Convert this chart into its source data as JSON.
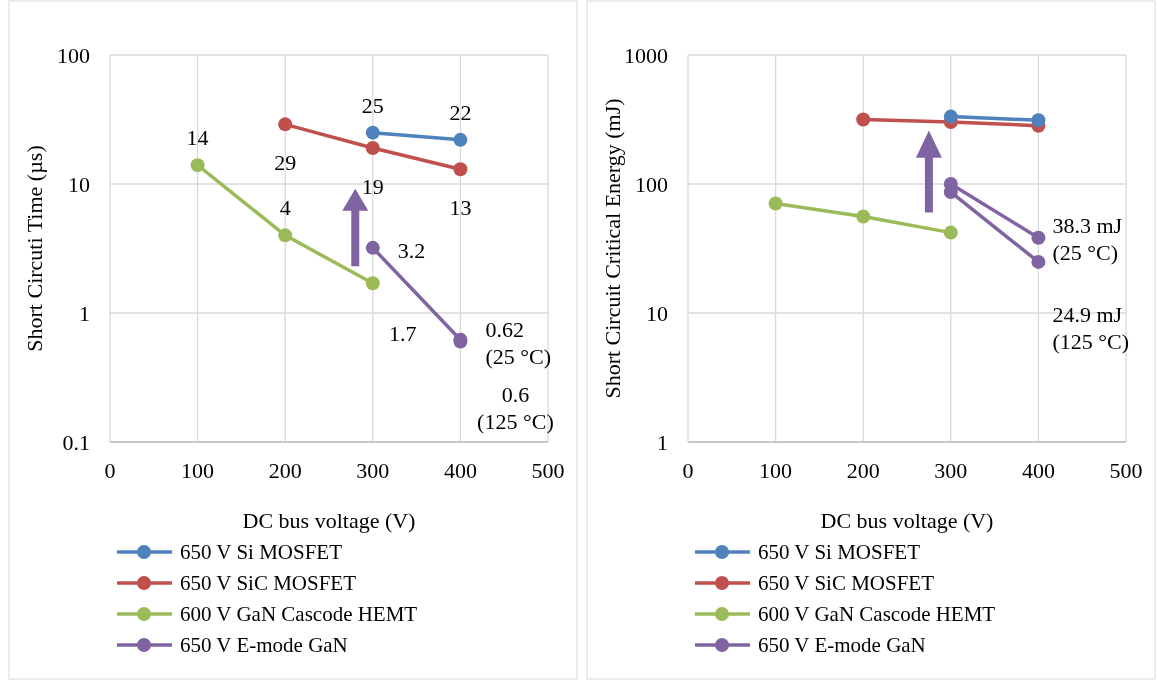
{
  "chart_data": [
    {
      "type": "line",
      "xlabel": "DC bus voltage (V)",
      "ylabel": "Short Circuti Time (µs)",
      "log": "y",
      "grid": true,
      "legend": "bottom",
      "marker": "circle",
      "xlim": [
        0,
        500
      ],
      "xticks": [
        0,
        100,
        200,
        300,
        400,
        500
      ],
      "ylim": [
        0.1,
        100
      ],
      "yticks": [
        0.1,
        1,
        10,
        100
      ],
      "series": [
        {
          "name": "650 V Si MOSFET",
          "color": "#4f81bd",
          "x": [
            300,
            400
          ],
          "values": [
            25,
            22
          ],
          "value_labels": [
            "25",
            "22"
          ]
        },
        {
          "name": "650 V SiC MOSFET",
          "color": "#c0504d",
          "x": [
            200,
            300,
            400
          ],
          "values": [
            29,
            19,
            13
          ],
          "value_labels": [
            "29",
            "19",
            "13"
          ]
        },
        {
          "name": "600 V GaN Cascode HEMT",
          "color": "#9bbb59",
          "x": [
            100,
            200,
            300
          ],
          "values": [
            14,
            4,
            1.7
          ],
          "value_labels": [
            "14",
            "4",
            "1.7"
          ]
        },
        {
          "name": "650 V E-mode GaN",
          "color": "#8064a2",
          "x": [
            300,
            400
          ],
          "values": [
            3.2,
            0.62
          ],
          "value_labels": [
            "3.2",
            "0.62 (25 °C)"
          ]
        },
        {
          "color": "#8064a2",
          "x": [
            400
          ],
          "values": [
            0.6
          ],
          "value_labels": [
            "0.6 (125 °C)"
          ]
        }
      ]
    },
    {
      "type": "line",
      "xlabel": "DC bus voltage (V)",
      "ylabel": "Short Circuit Critical Energy (mJ)",
      "log": "y",
      "grid": true,
      "legend": "bottom",
      "marker": "circle",
      "xlim": [
        0,
        500
      ],
      "xticks": [
        0,
        100,
        200,
        300,
        400,
        500
      ],
      "ylim": [
        1,
        1000
      ],
      "yticks": [
        1,
        10,
        100,
        1000
      ],
      "series": [
        {
          "name": "650 V Si MOSFET",
          "color": "#4f81bd",
          "x": [
            300,
            400
          ],
          "values": [
            333,
            312
          ]
        },
        {
          "name": "650 V SiC MOSFET",
          "color": "#c0504d",
          "x": [
            200,
            300,
            400
          ],
          "values": [
            316,
            302,
            283
          ]
        },
        {
          "name": "600 V GaN Cascode HEMT",
          "color": "#9bbb59",
          "x": [
            100,
            200,
            300
          ],
          "values": [
            70.6,
            56,
            42
          ]
        },
        {
          "name": "650 V E-mode GaN",
          "color": "#8064a2",
          "x": [
            300,
            400
          ],
          "values": [
            100,
            38.3
          ],
          "value_labels": [
            null,
            "38.3 mJ (25 °C)"
          ]
        },
        {
          "color": "#8064a2",
          "x": [
            300,
            400
          ],
          "values": [
            86.5,
            24.9
          ],
          "value_labels": [
            null,
            "24.9 mJ (125 °C)"
          ]
        }
      ]
    }
  ]
}
